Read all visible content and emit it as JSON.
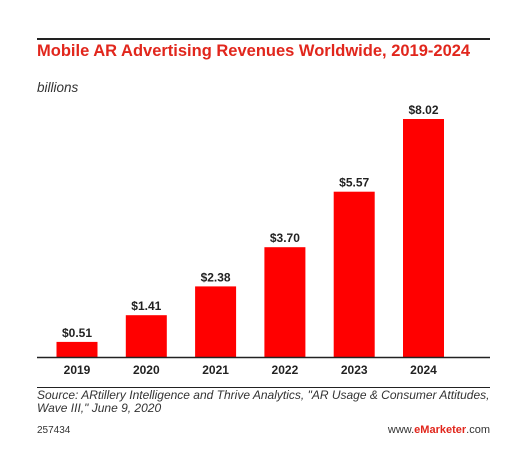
{
  "colors": {
    "bar": "#ff0000",
    "title": "#e1261c",
    "text": "#222222"
  },
  "chart_data": {
    "type": "bar",
    "title": "Mobile AR Advertising Revenues Worldwide, 2019-2024",
    "subtitle": "billions",
    "categories": [
      "2019",
      "2020",
      "2021",
      "2022",
      "2023",
      "2024"
    ],
    "values": [
      0.51,
      1.41,
      2.38,
      3.7,
      5.57,
      8.02
    ],
    "value_labels": [
      "$0.51",
      "$1.41",
      "$2.38",
      "$3.70",
      "$5.57",
      "$8.02"
    ],
    "xlabel": "",
    "ylabel": "",
    "ylim": [
      0,
      8.02
    ],
    "grid": false
  },
  "footer": {
    "source": "Source: ARtillery Intelligence and Thrive Analytics, \"AR Usage & Consumer Attitudes, Wave III,\" June 9, 2020",
    "chart_id": "257434",
    "brand_prefix": "www.",
    "brand_mark": "eMarketer",
    "brand_suffix": ".com"
  }
}
